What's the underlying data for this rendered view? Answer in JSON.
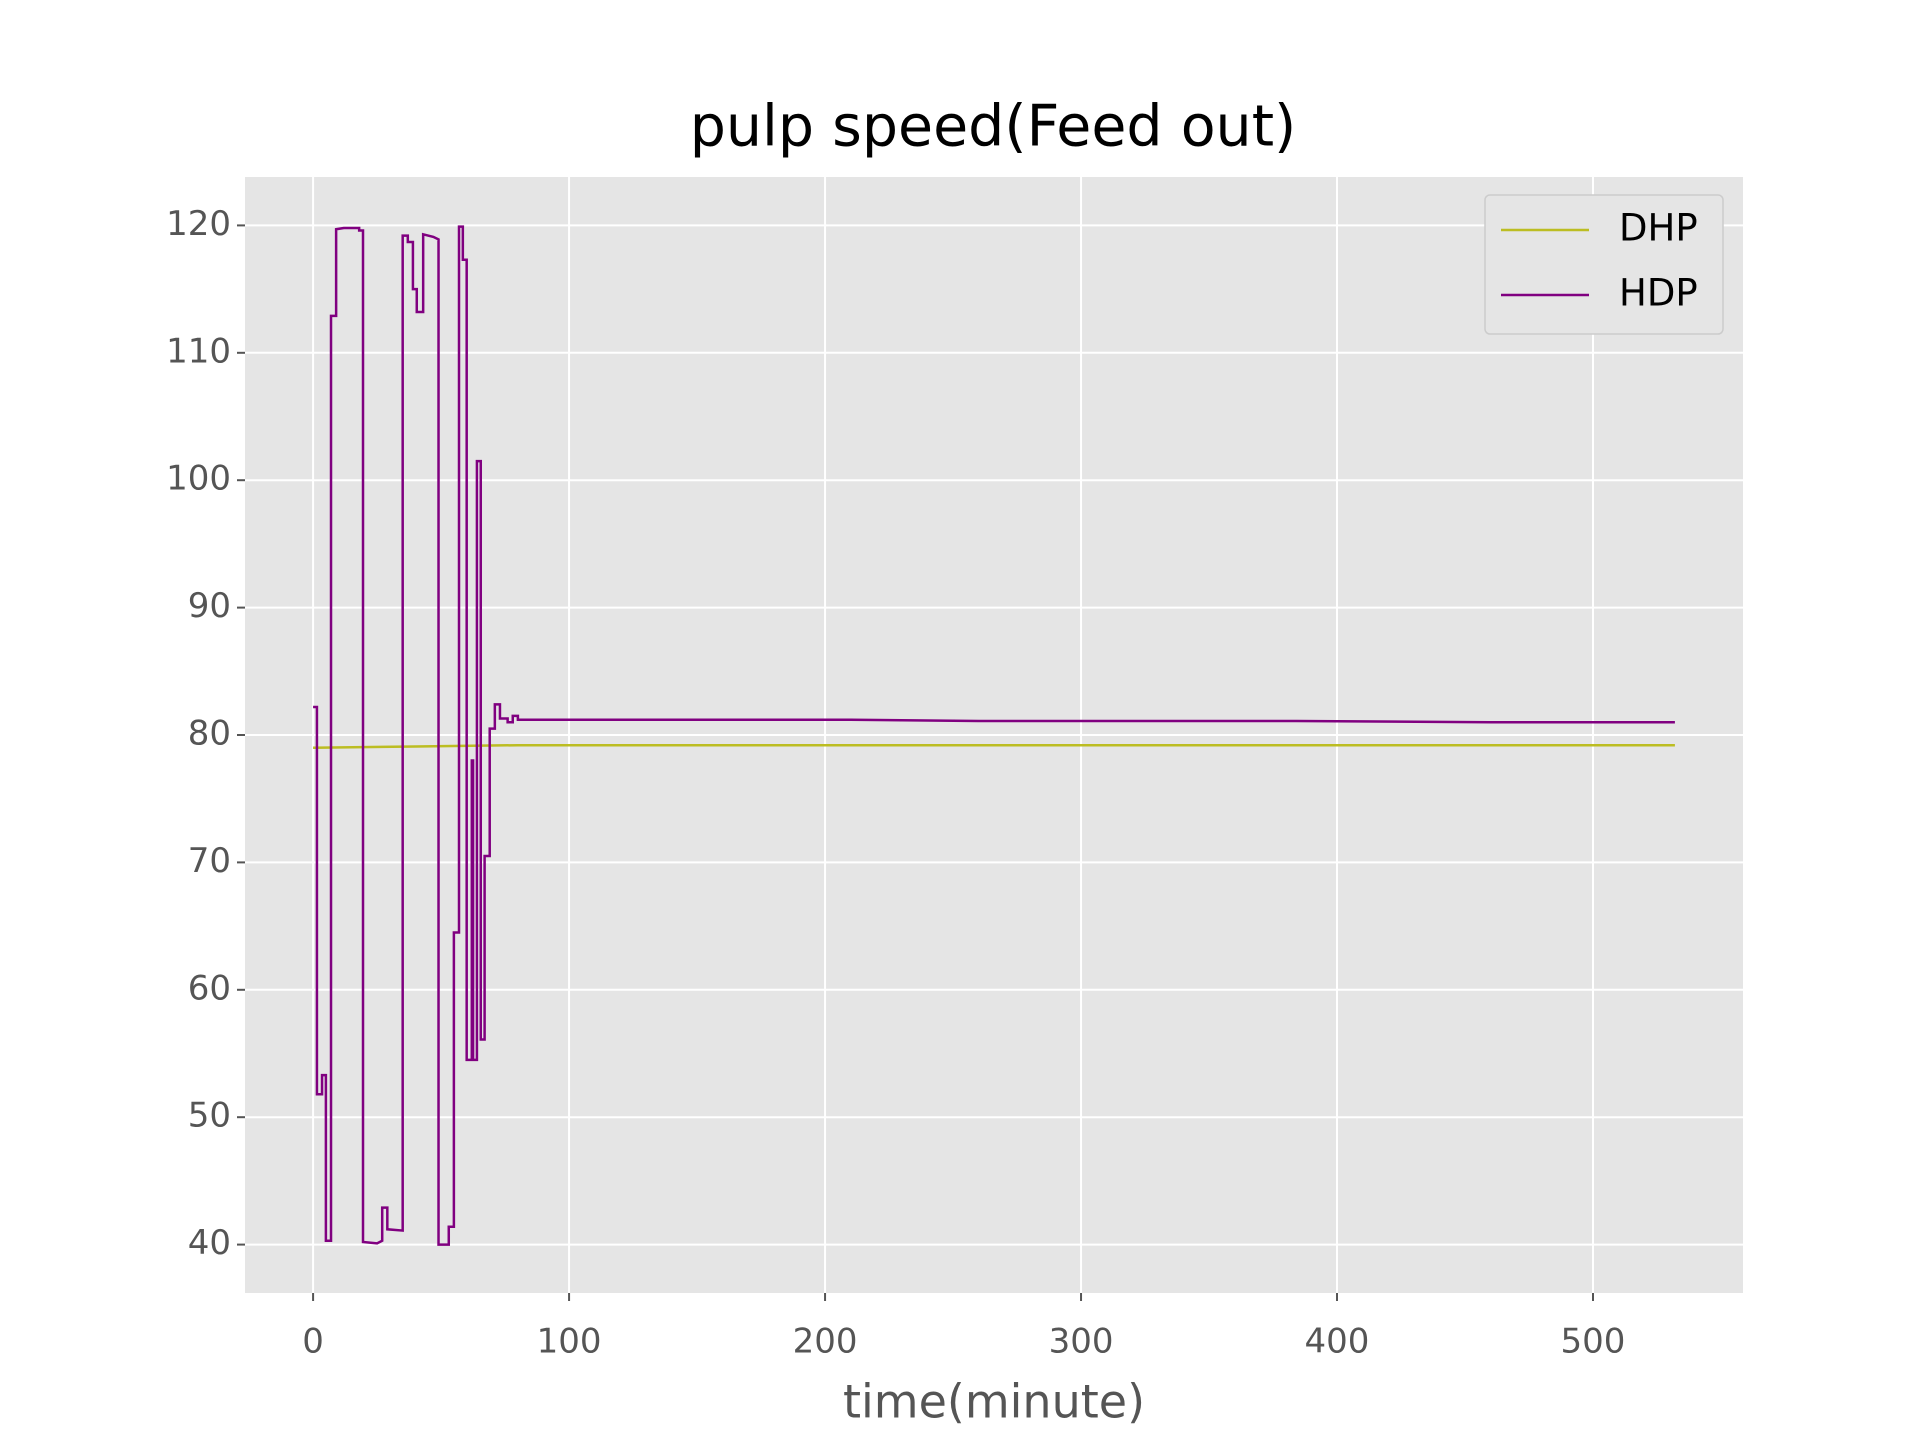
{
  "chart_data": {
    "type": "line",
    "title": "pulp speed(Feed out)",
    "x_label": "time(minute)",
    "xlim": [
      -26.6,
      558.6
    ],
    "xticks": [
      0,
      100,
      200,
      300,
      400,
      500
    ],
    "ylim": [
      36.2,
      123.8
    ],
    "yticks": [
      40,
      50,
      60,
      70,
      80,
      90,
      100,
      110,
      120
    ],
    "grid": true,
    "legend": "upper right",
    "series": [
      {
        "name": "DHP",
        "color": "#bcbd22",
        "x": [
          0,
          40,
          80,
          532
        ],
        "values": [
          79.0,
          79.1,
          79.2,
          79.2
        ]
      },
      {
        "name": "HDP",
        "color": "#800080",
        "x": [
          0,
          1.5,
          1.5,
          3.5,
          3.5,
          5,
          5,
          7,
          7,
          9,
          9,
          12,
          18,
          18,
          19.5,
          19.5,
          25,
          27,
          27,
          29,
          29,
          35,
          35,
          37,
          37,
          39,
          39,
          40.5,
          40.5,
          43,
          43,
          47,
          49,
          49,
          53,
          53,
          55,
          55,
          57,
          57,
          58.5,
          58.5,
          60,
          60,
          62,
          62,
          62.5,
          62.5,
          64,
          64,
          65.5,
          65.5,
          67,
          67,
          69,
          69,
          71,
          71,
          73,
          73,
          76,
          76,
          78,
          78,
          80,
          80,
          160,
          210,
          260,
          320,
          384,
          460,
          532
        ],
        "values": [
          82.2,
          82.2,
          51.8,
          51.8,
          53.3,
          53.3,
          40.3,
          40.3,
          112.9,
          112.9,
          119.7,
          119.8,
          119.8,
          119.6,
          119.6,
          40.2,
          40.1,
          40.3,
          42.9,
          42.9,
          41.2,
          41.1,
          119.2,
          119.2,
          118.7,
          118.7,
          115.0,
          115.0,
          113.2,
          113.2,
          119.3,
          119.1,
          118.9,
          40.0,
          40.0,
          41.4,
          41.4,
          64.5,
          64.5,
          119.9,
          119.9,
          117.3,
          117.3,
          54.5,
          54.5,
          78.0,
          78.0,
          54.5,
          54.5,
          101.5,
          101.5,
          56.1,
          56.1,
          70.5,
          70.5,
          80.5,
          80.5,
          82.4,
          82.4,
          81.3,
          81.3,
          81.0,
          81.0,
          81.5,
          81.5,
          81.2,
          81.2,
          81.2,
          81.1,
          81.1,
          81.1,
          81.0,
          81.0
        ]
      }
    ]
  }
}
